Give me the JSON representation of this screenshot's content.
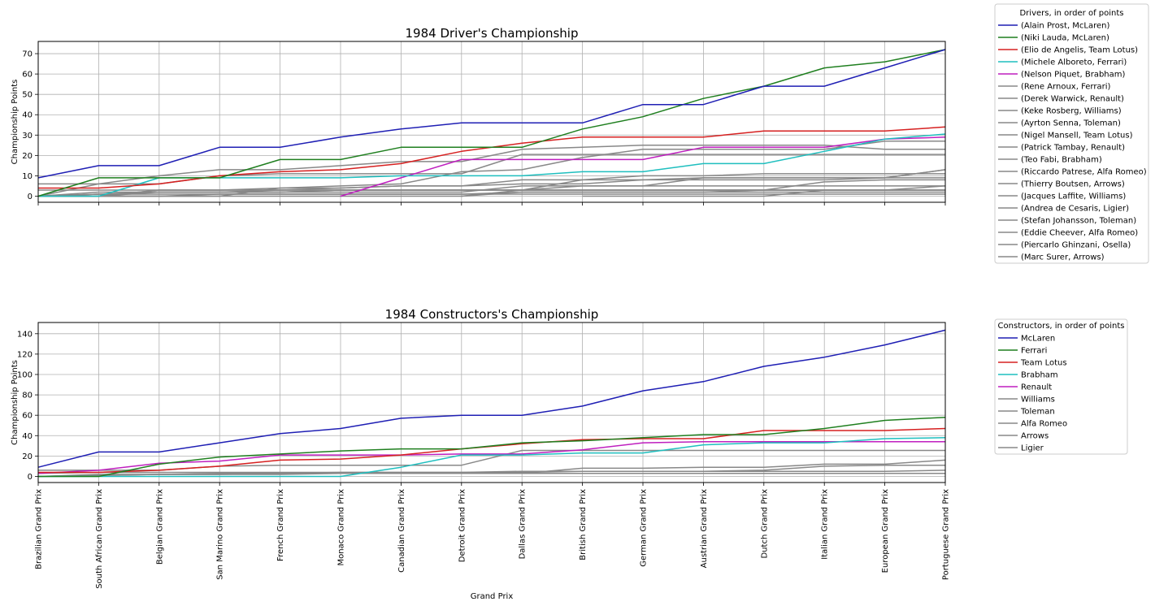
{
  "chart_data": [
    {
      "type": "line",
      "title": "1984 Driver's Championship",
      "xlabel": "",
      "ylabel": "Championship Points",
      "ylim": [
        -3,
        76
      ],
      "yticks": [
        0,
        10,
        20,
        30,
        40,
        50,
        60,
        70
      ],
      "grid": true,
      "show_xtick_labels": false,
      "legend_title": "Drivers, in order of points",
      "legend_placement": "outside-right",
      "categories": [
        "Brazilian Grand Prix",
        "South African Grand Prix",
        "Belgian Grand Prix",
        "San Marino Grand Prix",
        "French Grand Prix",
        "Monaco Grand Prix",
        "Canadian Grand Prix",
        "Detroit Grand Prix",
        "Dallas Grand Prix",
        "British Grand Prix",
        "German Grand Prix",
        "Austrian Grand Prix",
        "Dutch Grand Prix",
        "Italian Grand Prix",
        "European Grand Prix",
        "Portuguese Grand Prix"
      ],
      "series": [
        {
          "name": "(Alain Prost, McLaren)",
          "color": "#1f1fb4",
          "values": [
            9,
            15,
            15,
            24,
            24,
            29,
            33,
            36,
            36,
            36,
            45,
            45,
            54,
            54,
            63,
            72
          ]
        },
        {
          "name": "(Niki Lauda, McLaren)",
          "color": "#1f7f1f",
          "values": [
            0,
            9,
            9,
            9,
            18,
            18,
            24,
            24,
            24,
            33,
            39,
            48,
            54,
            63,
            66,
            72
          ]
        },
        {
          "name": "(Elio de Angelis, Team Lotus)",
          "color": "#d62020",
          "values": [
            4,
            4,
            6,
            10,
            12,
            13,
            16,
            22,
            26,
            29,
            29,
            29,
            32,
            32,
            32,
            34
          ]
        },
        {
          "name": "(Michele Alboreto, Ferrari)",
          "color": "#1fbfbf",
          "values": [
            0,
            0,
            9,
            9,
            9,
            9,
            10,
            10,
            10,
            12,
            12,
            16,
            16,
            22,
            28,
            30.5
          ]
        },
        {
          "name": "(Nelson Piquet, Brabham)",
          "color": "#bf1fbf",
          "values": [
            null,
            null,
            null,
            null,
            null,
            0,
            9,
            18,
            18,
            18,
            18,
            24,
            24,
            24,
            28,
            29
          ]
        },
        {
          "name": "(Rene Arnoux, Ferrari)",
          "color": "#888888",
          "values": [
            0,
            0,
            3,
            3,
            4,
            5,
            6,
            12,
            13,
            19,
            23,
            23,
            23,
            23,
            27,
            27
          ]
        },
        {
          "name": "(Derek Warwick, Renault)",
          "color": "#888888",
          "values": [
            0,
            6,
            10,
            13,
            13,
            15,
            17,
            17,
            23,
            24,
            25,
            25,
            25,
            25,
            23,
            23
          ]
        },
        {
          "name": "(Keke Rosberg, Williams)",
          "color": "#888888",
          "values": [
            6,
            6,
            6,
            10,
            11,
            11,
            11,
            11,
            20.5,
            20.5,
            20.5,
            20.5,
            20.5,
            20.5,
            20.5,
            20.5
          ]
        },
        {
          "name": "(Ayrton Senna, Toleman)",
          "color": "#888888",
          "values": [
            0,
            1,
            2,
            2,
            2,
            3,
            3,
            3,
            3,
            8,
            8,
            9,
            9,
            9,
            9,
            13
          ]
        },
        {
          "name": "(Nigel Mansell, Team Lotus)",
          "color": "#888888",
          "values": [
            0,
            0,
            0,
            0,
            4,
            4,
            5,
            5,
            6,
            6,
            8,
            8,
            8,
            8,
            9,
            13
          ]
        },
        {
          "name": "(Patrick Tambay, Renault)",
          "color": "#888888",
          "values": [
            0,
            0,
            3,
            3,
            3,
            4,
            5,
            5,
            8,
            8,
            10,
            10,
            11,
            11,
            11,
            11
          ]
        },
        {
          "name": "(Teo Fabi, Brabham)",
          "color": "#888888",
          "values": [
            null,
            null,
            null,
            null,
            null,
            null,
            null,
            0,
            3,
            5,
            5,
            9,
            9,
            9,
            9,
            9
          ]
        },
        {
          "name": "(Riccardo Patrese, Alfa Romeo)",
          "color": "#888888",
          "values": [
            0,
            1,
            1,
            1,
            1,
            1,
            1,
            1,
            2,
            2,
            2,
            2,
            3,
            7,
            8,
            8
          ]
        },
        {
          "name": "(Thierry Boutsen, Arrows)",
          "color": "#888888",
          "values": [
            0,
            1,
            2,
            2,
            2,
            3,
            3,
            3,
            3,
            3,
            3,
            3,
            3,
            3,
            3,
            5
          ]
        },
        {
          "name": "(Jacques Laffite, Williams)",
          "color": "#888888",
          "values": [
            0,
            0,
            2,
            2,
            2,
            2,
            2,
            2,
            5,
            5,
            5,
            5,
            5,
            5,
            5,
            5
          ]
        },
        {
          "name": "(Andrea de Cesaris, Ligier)",
          "color": "#888888",
          "values": [
            0,
            2,
            2,
            2,
            3,
            3,
            3,
            3,
            3,
            3,
            3,
            3,
            3,
            3,
            3,
            3
          ]
        },
        {
          "name": "(Stefan Johansson, Toleman)",
          "color": "#888888",
          "values": [
            null,
            null,
            null,
            null,
            null,
            null,
            null,
            null,
            null,
            0,
            0,
            0,
            0,
            3,
            3,
            3
          ]
        },
        {
          "name": "(Eddie Cheever, Alfa Romeo)",
          "color": "#888888",
          "values": [
            3,
            3,
            3,
            3,
            3,
            3,
            3,
            3,
            3,
            3,
            3,
            3,
            3,
            3,
            3,
            3
          ]
        },
        {
          "name": "(Piercarlo Ghinzani, Osella)",
          "color": "#888888",
          "values": [
            0,
            0,
            0,
            0,
            0,
            0,
            0,
            0,
            2,
            2,
            2,
            2,
            2,
            2,
            2,
            2
          ]
        },
        {
          "name": "(Marc Surer, Arrows)",
          "color": "#888888",
          "values": [
            0,
            0,
            0,
            1,
            1,
            1,
            1,
            1,
            1,
            1,
            1,
            1,
            1,
            1,
            1,
            1
          ]
        }
      ]
    },
    {
      "type": "line",
      "title": "1984 Constructors's Championship",
      "xlabel": "Grand Prix",
      "ylabel": "Championship Points",
      "ylim": [
        -6,
        151
      ],
      "yticks": [
        0,
        20,
        40,
        60,
        80,
        100,
        120,
        140
      ],
      "grid": true,
      "show_xtick_labels": true,
      "legend_title": "Constructors, in order of points",
      "legend_placement": "outside-right",
      "categories": [
        "Brazilian Grand Prix",
        "South African Grand Prix",
        "Belgian Grand Prix",
        "San Marino Grand Prix",
        "French Grand Prix",
        "Monaco Grand Prix",
        "Canadian Grand Prix",
        "Detroit Grand Prix",
        "Dallas Grand Prix",
        "British Grand Prix",
        "German Grand Prix",
        "Austrian Grand Prix",
        "Dutch Grand Prix",
        "Italian Grand Prix",
        "European Grand Prix",
        "Portuguese Grand Prix"
      ],
      "series": [
        {
          "name": "McLaren",
          "color": "#1f1fb4",
          "values": [
            9,
            24,
            24,
            33,
            42,
            47,
            57,
            60,
            60,
            69,
            84,
            93,
            108,
            117,
            129,
            143.5
          ]
        },
        {
          "name": "Ferrari",
          "color": "#1f7f1f",
          "values": [
            0,
            0,
            12,
            19,
            22,
            25,
            27,
            27,
            33,
            35,
            38,
            41,
            41,
            47,
            55,
            58
          ]
        },
        {
          "name": "Team Lotus",
          "color": "#d62020",
          "values": [
            4,
            4,
            6,
            10,
            16,
            17,
            21,
            27,
            32,
            36,
            37,
            37,
            45,
            45,
            45,
            47
          ]
        },
        {
          "name": "Brabham",
          "color": "#1fbfbf",
          "values": [
            0,
            0,
            0,
            0,
            0,
            0,
            9,
            21,
            21,
            23,
            23,
            31,
            33,
            33,
            37,
            38
          ]
        },
        {
          "name": "Renault",
          "color": "#bf1fbf",
          "values": [
            3,
            6,
            13,
            15,
            21,
            21,
            21,
            22,
            22,
            26,
            33,
            34,
            34,
            34,
            34,
            34
          ]
        },
        {
          "name": "Williams",
          "color": "#888888",
          "values": [
            6,
            6,
            6,
            10,
            11,
            11,
            11,
            11,
            25.5,
            25.5,
            25.5,
            25.5,
            25.5,
            25.5,
            25.5,
            25.5
          ]
        },
        {
          "name": "Toleman",
          "color": "#888888",
          "values": [
            0,
            1,
            2,
            2,
            2,
            3,
            3,
            3,
            3,
            8,
            8,
            9,
            9,
            12,
            12,
            16
          ]
        },
        {
          "name": "Alfa Romeo",
          "color": "#888888",
          "values": [
            3,
            4,
            4,
            4,
            4,
            4,
            4,
            4,
            5,
            5,
            5,
            5,
            6,
            10,
            11,
            11
          ]
        },
        {
          "name": "Arrows",
          "color": "#888888",
          "values": [
            0,
            1,
            2,
            3,
            3,
            4,
            4,
            4,
            4,
            5,
            5,
            5,
            5,
            5,
            5,
            6
          ]
        },
        {
          "name": "Ligier",
          "color": "#888888",
          "values": [
            0,
            2,
            2,
            2,
            3,
            3,
            3,
            3,
            3,
            3,
            3,
            3,
            3,
            3,
            3,
            3
          ]
        }
      ]
    }
  ]
}
